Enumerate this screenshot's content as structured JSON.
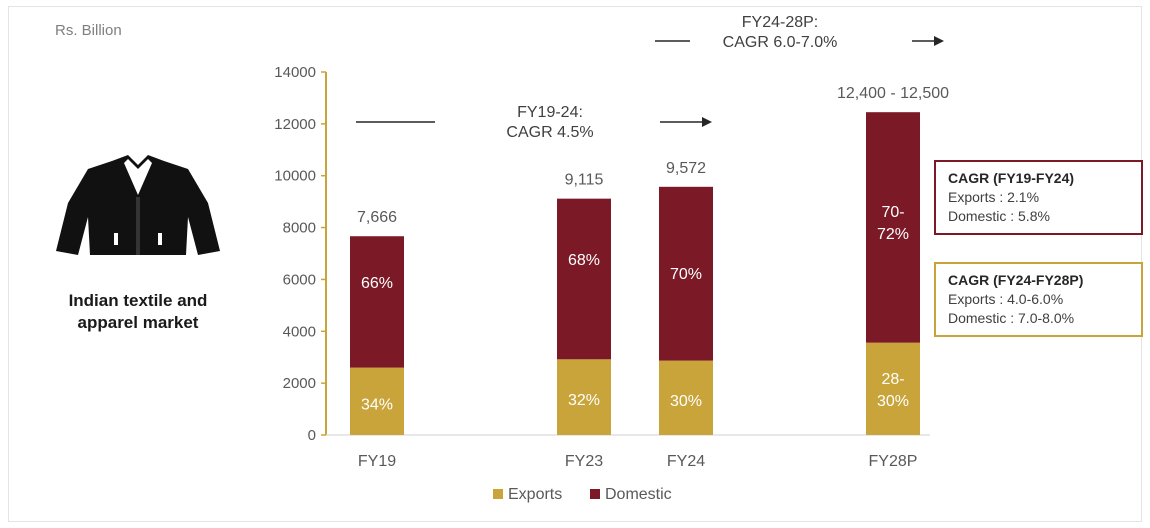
{
  "unit_label": "Rs. Billion",
  "market_label": [
    "Indian textile and",
    "apparel market"
  ],
  "colors": {
    "exports": "#c9a43a",
    "domestic": "#7b1a26",
    "axis": "#c9a43a",
    "text": "#595959"
  },
  "icon": "jacket-icon",
  "growth_labels": {
    "period1": {
      "line1": "FY19-24:",
      "line2": "CAGR 4.5%"
    },
    "period2": {
      "line1": "FY24-28P:",
      "line2": "CAGR 6.0-7.0%"
    }
  },
  "cagr_boxes": [
    {
      "title": "CAGR (FY19-FY24)",
      "exports": "Exports : 2.1%",
      "domestic": "Domestic : 5.8%"
    },
    {
      "title": "CAGR (FY24-FY28P)",
      "exports": "Exports : 4.0-6.0%",
      "domestic": "Domestic : 7.0-8.0%"
    }
  ],
  "chart_data": {
    "type": "bar",
    "stacked": true,
    "categories": [
      "FY19",
      "FY23",
      "FY24",
      "FY28P"
    ],
    "series": [
      {
        "name": "Exports",
        "values": [
          2600,
          2920,
          2870,
          3560
        ],
        "labels": [
          "34%",
          "32%",
          "30%",
          "28-\n30%"
        ]
      },
      {
        "name": "Domestic",
        "values": [
          5066,
          6195,
          6702,
          8890
        ],
        "labels": [
          "66%",
          "68%",
          "70%",
          "70-\n72%"
        ]
      }
    ],
    "totals": [
      "7,666",
      "9,115",
      "9,572",
      "12,400 - 12,500"
    ],
    "ylim": [
      0,
      14000
    ],
    "yticks": [
      0,
      2000,
      4000,
      6000,
      8000,
      10000,
      12000,
      14000
    ],
    "legend_position": "bottom",
    "grid": false
  }
}
